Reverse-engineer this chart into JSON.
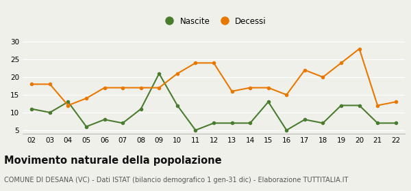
{
  "years": [
    "02",
    "03",
    "04",
    "05",
    "06",
    "07",
    "08",
    "09",
    "10",
    "11",
    "12",
    "13",
    "14",
    "15",
    "16",
    "17",
    "18",
    "19",
    "20",
    "21",
    "22"
  ],
  "nascite": [
    11,
    10,
    13,
    6,
    8,
    7,
    11,
    21,
    12,
    5,
    7,
    7,
    7,
    13,
    5,
    8,
    7,
    12,
    12,
    7,
    7
  ],
  "decessi": [
    18,
    18,
    12,
    14,
    17,
    17,
    17,
    17,
    21,
    24,
    24,
    16,
    17,
    17,
    15,
    22,
    20,
    24,
    28,
    12,
    13
  ],
  "nascite_color": "#4a7c2f",
  "decessi_color": "#e87800",
  "marker_size": 4,
  "line_width": 1.5,
  "ylim": [
    4,
    31
  ],
  "yticks": [
    5,
    10,
    15,
    20,
    25,
    30
  ],
  "title": "Movimento naturale della popolazione",
  "subtitle": "COMUNE DI DESANA (VC) - Dati ISTAT (bilancio demografico 1 gen-31 dic) - Elaborazione TUTTITALIA.IT",
  "legend_nascite": "Nascite",
  "legend_decessi": "Decessi",
  "bg_color": "#f0f0eb",
  "grid_color": "#ffffff",
  "title_fontsize": 10.5,
  "subtitle_fontsize": 7,
  "tick_fontsize": 7.5,
  "legend_fontsize": 8.5
}
